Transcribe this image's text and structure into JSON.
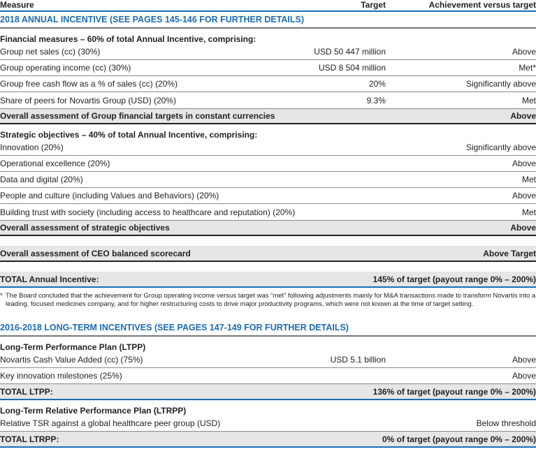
{
  "header": {
    "measure": "Measure",
    "target": "Target",
    "achievement": "Achievement versus target"
  },
  "annual": {
    "title": "2018 ANNUAL INCENTIVE (SEE PAGES 145-146 FOR FURTHER DETAILS)",
    "financial_heading": "Financial measures – 60% of total Annual Incentive, comprising:",
    "financial_rows": [
      {
        "measure": "Group net sales (cc) (30%)",
        "target": "USD 50 447 million",
        "achievement": "Above"
      },
      {
        "measure": "Group operating income (cc) (30%)",
        "target": "USD 8 504 million",
        "achievement": "Met*"
      },
      {
        "measure": "Group free cash flow as a % of sales (cc) (20%)",
        "target": "20%",
        "achievement": "Significantly above"
      },
      {
        "measure": "Share of peers for Novartis Group (USD) (20%)",
        "target": "9.3%",
        "achievement": "Met"
      }
    ],
    "financial_overall": {
      "measure": "Overall assessment of Group financial targets in constant currencies",
      "achievement": "Above"
    },
    "strategic_heading": "Strategic objectives – 40% of total Annual Incentive, comprising:",
    "strategic_rows": [
      {
        "measure": "Innovation (20%)",
        "achievement": "Significantly above"
      },
      {
        "measure": "Operational excellence (20%)",
        "achievement": "Above"
      },
      {
        "measure": "Data and digital (20%)",
        "achievement": "Met"
      },
      {
        "measure": "People and culture (including Values and Behaviors) (20%)",
        "achievement": "Above"
      },
      {
        "measure": "Building trust with society (including access to healthcare and reputation) (20%)",
        "achievement": "Met"
      }
    ],
    "strategic_overall": {
      "measure": "Overall assessment of strategic objectives",
      "achievement": "Above"
    },
    "ceo_overall": {
      "measure": "Overall assessment of CEO balanced scorecard",
      "achievement": "Above Target"
    },
    "total": {
      "measure": "TOTAL Annual Incentive:",
      "achievement": "145% of target (payout range 0% – 200%)"
    },
    "footnote_mark": "*",
    "footnote": "The Board concluded that the achievement for Group operating income versus target was “met” following adjustments mainly for M&A transactions made to transform Novartis into a leading, focused medicines company, and for higher restructuring costs to drive major productivity programs, which were not known at the time of target setting."
  },
  "longterm": {
    "title": "2016-2018 LONG-TERM INCENTIVES (SEE PAGES 147-149 FOR FURTHER DETAILS)",
    "ltpp_heading": "Long-Term Performance Plan (LTPP)",
    "ltpp_rows": [
      {
        "measure": "Novartis Cash Value Added (cc) (75%)",
        "target": "USD 5.1 billion",
        "achievement": "Above"
      },
      {
        "measure": "Key innovation milestones (25%)",
        "target": "",
        "achievement": "Above"
      }
    ],
    "ltpp_total": {
      "measure": "TOTAL LTPP:",
      "achievement": "136% of target (payout range 0% – 200%)"
    },
    "ltrpp_heading": "Long-Term Relative Performance Plan (LTRPP)",
    "ltrpp_rows": [
      {
        "measure": "Relative TSR against a global healthcare peer group (USD)",
        "target": "",
        "achievement": "Below threshold"
      }
    ],
    "ltrpp_total": {
      "measure": "TOTAL LTRPP:",
      "achievement": "0% of target (payout range 0% – 200%)"
    }
  }
}
